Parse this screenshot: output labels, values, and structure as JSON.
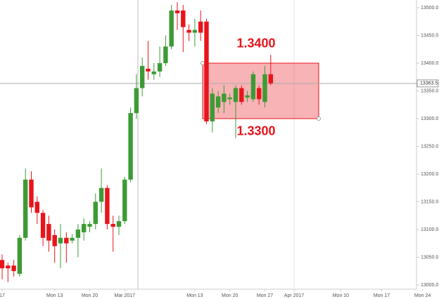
{
  "chart_data": {
    "type": "candlestick",
    "categories": [
      "17",
      null,
      null,
      null,
      null,
      null,
      null,
      null,
      null,
      "Mon 13",
      null,
      null,
      null,
      null,
      null,
      "Mon 20",
      null,
      null,
      null,
      null,
      null,
      "Mar 2017",
      null,
      null,
      null,
      null,
      null,
      null,
      null,
      null,
      null,
      null,
      null,
      "Mon 13",
      null,
      null,
      null,
      null,
      null,
      "Mon 20",
      null,
      null,
      null,
      null,
      null,
      "Mon 27",
      null,
      null,
      null,
      null,
      "Apr 2017",
      null,
      null,
      null,
      null,
      null,
      null,
      null,
      "Mon 10",
      null,
      null,
      null,
      null,
      null,
      null,
      "Mon 17",
      null,
      null,
      null,
      null,
      null,
      null,
      "Mon 24"
    ],
    "open": [
      13045,
      13035,
      13035,
      13020,
      13085,
      13190,
      13150,
      13130,
      13110,
      13090,
      13075,
      13085,
      13080,
      13085,
      13095,
      13105,
      13110,
      13150,
      13175,
      13110,
      13105,
      13115,
      13190,
      13310,
      13355,
      13390,
      13380,
      13385,
      13400,
      13430,
      13495,
      13495,
      13460,
      13455,
      13475,
      13475,
      13295,
      13320,
      13330,
      13335,
      13330,
      13355,
      13338,
      13335,
      13355,
      13330,
      13380,
      null,
      null,
      null,
      null,
      null,
      null,
      null,
      null,
      null,
      null,
      null,
      null,
      null,
      null,
      null,
      null,
      null,
      null,
      null,
      null,
      null,
      null,
      null,
      null,
      null,
      null
    ],
    "high": [
      13055,
      13040,
      13045,
      13090,
      13210,
      13205,
      13160,
      13135,
      13125,
      13100,
      13110,
      13095,
      13092,
      13110,
      13120,
      13115,
      13165,
      13210,
      13180,
      13125,
      13125,
      13195,
      13320,
      13380,
      13410,
      13440,
      13400,
      13430,
      13450,
      13505,
      13510,
      13505,
      13470,
      13480,
      13495,
      13480,
      13355,
      13350,
      13360,
      13345,
      13360,
      13360,
      13350,
      13385,
      13360,
      13395,
      13415,
      null,
      null,
      null,
      null,
      null,
      null,
      null,
      null,
      null,
      null,
      null,
      null,
      null,
      null,
      null,
      null,
      null,
      null,
      null,
      null,
      null,
      null,
      null,
      null,
      null,
      null
    ],
    "low": [
      13010,
      13005,
      13015,
      13015,
      13080,
      13130,
      13110,
      13070,
      13060,
      13040,
      13030,
      13040,
      13075,
      13050,
      13080,
      13095,
      13100,
      13130,
      13100,
      13060,
      13090,
      13110,
      13185,
      13300,
      13340,
      13370,
      13370,
      13375,
      13395,
      13425,
      13460,
      13420,
      13440,
      13430,
      13440,
      13290,
      13275,
      13310,
      13310,
      13325,
      13265,
      13325,
      13330,
      13330,
      13325,
      13320,
      13360,
      null,
      null,
      null,
      null,
      null,
      null,
      null,
      null,
      null,
      null,
      null,
      null,
      null,
      null,
      null,
      null,
      null,
      null,
      null,
      null,
      null,
      null,
      null,
      null,
      null,
      null
    ],
    "close": [
      13030,
      13030,
      13025,
      13085,
      13190,
      13140,
      13130,
      13085,
      13080,
      13070,
      13085,
      13075,
      13085,
      13100,
      13110,
      13110,
      13150,
      13175,
      13110,
      13105,
      13115,
      13190,
      13310,
      13355,
      13395,
      13385,
      13385,
      13400,
      13430,
      13495,
      13490,
      13465,
      13455,
      13460,
      13455,
      13295,
      13345,
      13340,
      13345,
      13338,
      13355,
      13330,
      13342,
      13380,
      13335,
      13380,
      13363.5,
      null,
      null,
      null,
      null,
      null,
      null,
      null,
      null,
      null,
      null,
      null,
      null,
      null,
      null,
      null,
      null,
      null,
      null,
      null,
      null,
      null,
      null,
      null,
      null,
      null,
      null
    ],
    "up_color": "#3d9b35",
    "down_color": "#e8141c",
    "ylim": [
      12992.4,
      13513.9
    ],
    "yticks": [
      {
        "value": 13000,
        "label": "13000.0"
      },
      {
        "value": 13050,
        "label": "13050.0"
      },
      {
        "value": 13100,
        "label": "13100.0"
      },
      {
        "value": 13150,
        "label": "13150.0"
      },
      {
        "value": 13200,
        "label": "13200.0"
      },
      {
        "value": 13250,
        "label": "13250.0"
      },
      {
        "value": 13300,
        "label": "13300.0"
      },
      {
        "value": 13350,
        "label": "13350.0"
      },
      {
        "value": 13400,
        "label": "13400.0"
      },
      {
        "value": 13450,
        "label": "13450.0"
      },
      {
        "value": 13500,
        "label": "13500.0"
      }
    ],
    "last_price": 13363.5,
    "zone": {
      "top": 13400,
      "bottom": 13300,
      "top_label": "1.3400",
      "bottom_label": "1.3300",
      "color": "#e8141c"
    }
  }
}
